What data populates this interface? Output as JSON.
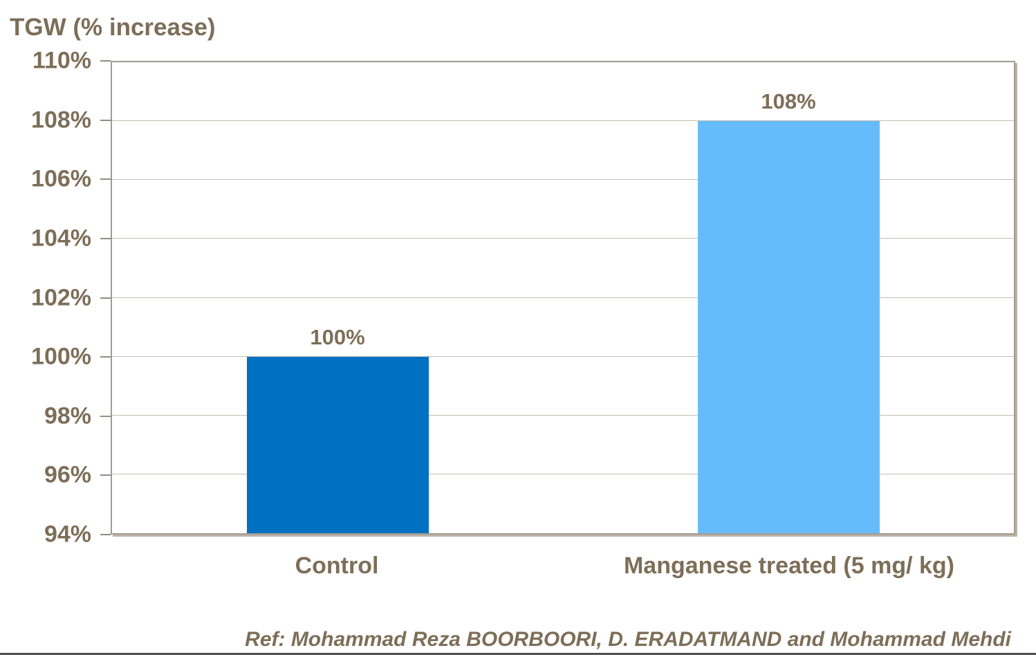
{
  "chart_title": "TGW (% increase)",
  "footer": {
    "reference": "Ref: Mohammad Reza BOORBOORI, D. ERADATMAND and Mohammad Mehdi"
  },
  "colors": {
    "text_brown": "#7d6e58",
    "bar_control_blue": "#0071c2",
    "bar_treated_light_blue": "#66bcfa",
    "gridline_tan": "#c6bcae",
    "plot_border_gray": "#a29b91",
    "footer_divider_gray": "#4c4c4c"
  },
  "chart_data": {
    "type": "bar",
    "title": "TGW (% increase)",
    "categories": [
      "Control",
      "Manganese treated (5 mg/ kg)"
    ],
    "values": [
      100,
      108
    ],
    "data_labels": [
      "100%",
      "108%"
    ],
    "bar_colors": [
      "#0071c2",
      "#66bcfa"
    ],
    "xlabel": "",
    "ylabel": "TGW (% increase)",
    "ylim": [
      94,
      110
    ],
    "ytick_step": 2,
    "ytick_labels": [
      "94%",
      "96%",
      "98%",
      "100%",
      "102%",
      "104%",
      "106%",
      "108%",
      "110%"
    ],
    "grid": true,
    "legend_position": "none"
  }
}
